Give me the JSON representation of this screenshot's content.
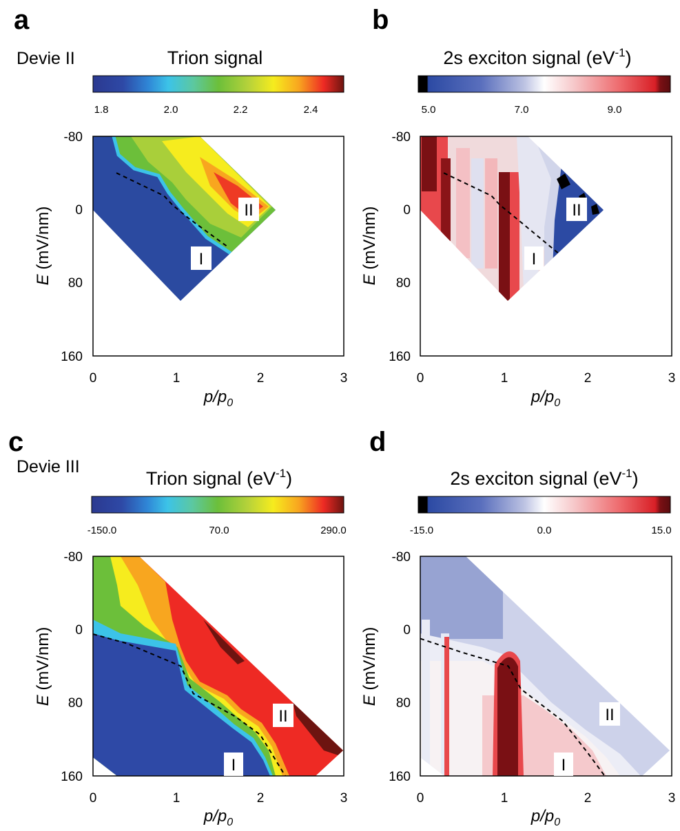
{
  "chart_data": [
    {
      "panel": "a",
      "type": "heatmap",
      "device_label": "Devie II",
      "colorbar": {
        "title": "Trion signal",
        "title_sup": "",
        "title_suffix": "",
        "ticks": [
          "1.8",
          "2.0",
          "2.2",
          "2.4"
        ],
        "tick_values": [
          1.8,
          2.0,
          2.2,
          2.4
        ],
        "range": [
          1.75,
          2.48
        ],
        "colormap": "jet"
      },
      "x_ticks": [
        "0",
        "1",
        "2",
        "3"
      ],
      "y_ticks": [
        "-80",
        "0",
        "80",
        "160"
      ],
      "xlim": [
        0,
        3
      ],
      "ylim": [
        -80,
        160
      ],
      "xlabel": "p/p",
      "xlabel_sub": "0",
      "ylabel_main": "E",
      "ylabel_unit": " (mV/nm)",
      "region_labels": [
        {
          "text": "II",
          "x": 1.8,
          "y": 0
        },
        {
          "text": "I",
          "x": 1.3,
          "y": 53
        }
      ],
      "boundary_line": [
        [
          0.28,
          -40
        ],
        [
          0.85,
          -15
        ],
        [
          0.95,
          -5
        ],
        [
          1.15,
          10
        ],
        [
          1.6,
          40
        ]
      ],
      "domain": {
        "x_start": 0,
        "x_end": 2.2,
        "y_at_x0_top": -80,
        "y_at_x0_bottom": 10
      }
    },
    {
      "panel": "b",
      "type": "heatmap",
      "device_label": "",
      "colorbar": {
        "title": "2s exciton signal (eV",
        "title_sup": "-1",
        "title_suffix": ")",
        "ticks": [
          "5.0",
          "7.0",
          "9.0"
        ],
        "tick_values": [
          5.0,
          7.0,
          9.0
        ],
        "range": [
          4.8,
          10.2
        ],
        "colormap": "blue-white-red"
      },
      "x_ticks": [
        "0",
        "1",
        "2",
        "3"
      ],
      "y_ticks": [
        "-80",
        "0",
        "80",
        "160"
      ],
      "xlim": [
        0,
        3
      ],
      "ylim": [
        -80,
        160
      ],
      "xlabel": "p/p",
      "xlabel_sub": "0",
      "ylabel_main": "E",
      "ylabel_unit": " (mV/nm)",
      "region_labels": [
        {
          "text": "II",
          "x": 1.85,
          "y": 0
        },
        {
          "text": "I",
          "x": 1.35,
          "y": 53
        }
      ],
      "boundary_line": [
        [
          0.28,
          -40
        ],
        [
          0.85,
          -15
        ],
        [
          0.95,
          -5
        ],
        [
          1.15,
          10
        ],
        [
          1.65,
          48
        ]
      ],
      "domain": {
        "x_start": 0,
        "x_end": 2.2,
        "y_at_x0_top": -80,
        "y_at_x0_bottom": 10
      }
    },
    {
      "panel": "c",
      "type": "heatmap",
      "device_label": "Devie III",
      "colorbar": {
        "title": "Trion signal (eV",
        "title_sup": "-1",
        "title_suffix": ")",
        "ticks": [
          "-150.0",
          "70.0",
          "290.0"
        ],
        "tick_values": [
          -150,
          70,
          290
        ],
        "range": [
          -175,
          310
        ],
        "colormap": "jet"
      },
      "x_ticks": [
        "0",
        "1",
        "2",
        "3"
      ],
      "y_ticks": [
        "-80",
        "0",
        "80",
        "160"
      ],
      "xlim": [
        0,
        3
      ],
      "ylim": [
        -80,
        160
      ],
      "xlabel": "p/p",
      "xlabel_sub": "0",
      "ylabel_main": "E",
      "ylabel_unit": " (mV/nm)",
      "region_labels": [
        {
          "text": "II",
          "x": 2.2,
          "y": 92
        },
        {
          "text": "I",
          "x": 1.7,
          "y": 148
        }
      ],
      "boundary_line": [
        [
          0,
          5
        ],
        [
          0.4,
          15
        ],
        [
          1.05,
          40
        ],
        [
          1.2,
          70
        ],
        [
          1.7,
          95
        ],
        [
          2.0,
          115
        ],
        [
          2.3,
          160
        ]
      ],
      "domain": {
        "x_start": 0,
        "x_end": 3.0,
        "y_at_x0_top": -80,
        "y_at_x0_bottom": 140
      }
    },
    {
      "panel": "d",
      "type": "heatmap",
      "device_label": "",
      "colorbar": {
        "title": "2s exciton signal (eV",
        "title_sup": "-1",
        "title_suffix": ")",
        "ticks": [
          "-15.0",
          "0.0",
          "15.0"
        ],
        "tick_values": [
          -15,
          0,
          15
        ],
        "range": [
          -16,
          16
        ],
        "colormap": "blue-white-red"
      },
      "x_ticks": [
        "0",
        "1",
        "2",
        "3"
      ],
      "y_ticks": [
        "-80",
        "0",
        "80",
        "160"
      ],
      "xlim": [
        0,
        3
      ],
      "ylim": [
        -80,
        160
      ],
      "xlabel": "p/p",
      "xlabel_sub": "0",
      "ylabel_main": "E",
      "ylabel_unit": " (mV/nm)",
      "region_labels": [
        {
          "text": "II",
          "x": 2.25,
          "y": 92
        },
        {
          "text": "I",
          "x": 1.7,
          "y": 148
        }
      ],
      "boundary_line": [
        [
          0,
          10
        ],
        [
          0.5,
          25
        ],
        [
          1.05,
          40
        ],
        [
          1.2,
          65
        ],
        [
          1.7,
          100
        ],
        [
          2.0,
          135
        ],
        [
          2.2,
          160
        ]
      ],
      "domain": {
        "x_start": 0,
        "x_end": 3.0,
        "y_at_x0_top": -80,
        "y_at_x0_bottom": 140
      }
    }
  ]
}
